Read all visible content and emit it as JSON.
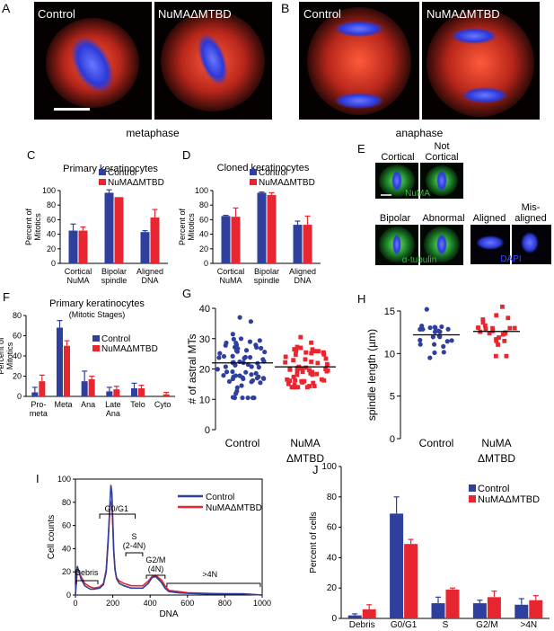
{
  "colors": {
    "control": "#2e3f9e",
    "mutant": "#e8262f",
    "spindle": "#e8321e",
    "dna": "#3a48ff",
    "numa_stain": "#36c13e"
  },
  "panels": {
    "A": {
      "letter": "A",
      "labels": [
        "Control",
        "NuMAΔMTBD"
      ],
      "caption": "metaphase"
    },
    "B": {
      "letter": "B",
      "labels": [
        "Control",
        "NuMAΔMTBD"
      ],
      "caption": "anaphase"
    },
    "E": {
      "letter": "E",
      "labels": [
        "Cortical",
        "Not Cortical",
        "Bipolar",
        "Abnormal",
        "Aligned",
        "Mis-aligned"
      ],
      "stains": [
        "NuMA",
        "α-tubulin",
        "DAPI"
      ]
    },
    "C": {
      "letter": "C"
    },
    "D": {
      "letter": "D"
    },
    "F": {
      "letter": "F"
    },
    "G": {
      "letter": "G"
    },
    "H": {
      "letter": "H"
    },
    "I": {
      "letter": "I"
    },
    "J": {
      "letter": "J"
    }
  },
  "chart_data": [
    {
      "id": "C",
      "type": "bar",
      "title": "Primary keratinocytes",
      "ylabel": "Percent of Mitotics",
      "ylim": [
        0,
        100
      ],
      "yticks": [
        0,
        20,
        40,
        60,
        80,
        100
      ],
      "categories": [
        "Cortical NuMA",
        "Bipolar spindle",
        "Aligned DNA"
      ],
      "categories_lines": [
        [
          "Cortical",
          "NuMA"
        ],
        [
          "Bipolar",
          "spindle"
        ],
        [
          "Aligned",
          "DNA"
        ]
      ],
      "series": [
        {
          "name": "Control",
          "values": [
            45,
            97,
            43
          ],
          "errors": [
            9,
            4,
            2
          ]
        },
        {
          "name": "NuMAΔMTBD",
          "values": [
            45,
            91,
            63
          ],
          "errors": [
            5,
            0,
            11
          ]
        }
      ]
    },
    {
      "id": "D",
      "type": "bar",
      "title": "Cloned keratinocytes",
      "ylabel": "Percent of Mitotics",
      "ylim": [
        0,
        100
      ],
      "yticks": [
        0,
        20,
        40,
        60,
        80,
        100
      ],
      "categories": [
        "Cortical NuMA",
        "Bipolar spindle",
        "Aligned DNA"
      ],
      "categories_lines": [
        [
          "Cortical",
          "NuMA"
        ],
        [
          "Bipolar",
          "spindle"
        ],
        [
          "Aligned",
          "DNA"
        ]
      ],
      "series": [
        {
          "name": "Control",
          "values": [
            65,
            97,
            53
          ],
          "errors": [
            1,
            1,
            5
          ]
        },
        {
          "name": "NuMAΔMTBD",
          "values": [
            64,
            94,
            53
          ],
          "errors": [
            12,
            3,
            12
          ]
        }
      ]
    },
    {
      "id": "F",
      "type": "bar",
      "title": "Primary keratinocytes",
      "subtitle": "(Mitotic Stages)",
      "ylabel": "Percent of Mitotics",
      "ylim": [
        0,
        80
      ],
      "yticks": [
        0,
        20,
        40,
        60,
        80
      ],
      "categories": [
        "Pro-meta",
        "Meta",
        "Ana",
        "Late Ana",
        "Telo",
        "Cyto"
      ],
      "categories_lines": [
        [
          "Pro-",
          "meta"
        ],
        [
          "Meta"
        ],
        [
          "Ana"
        ],
        [
          "Late",
          "Ana"
        ],
        [
          "Telo"
        ],
        [
          "Cyto"
        ]
      ],
      "series": [
        {
          "name": "Control",
          "values": [
            4,
            68,
            15,
            5,
            8,
            0
          ],
          "errors": [
            5,
            7,
            10,
            4,
            5,
            0
          ]
        },
        {
          "name": "NuMAΔMTBD",
          "values": [
            15,
            50,
            17,
            7,
            8,
            2
          ],
          "errors": [
            6,
            5,
            3,
            3,
            3,
            2
          ]
        }
      ]
    },
    {
      "id": "G",
      "type": "scatter",
      "ylabel": "# of astral MTs",
      "ylim": [
        0,
        40
      ],
      "yticks": [
        0,
        10,
        20,
        30,
        40
      ],
      "categories": [
        "Control",
        "NuMA ΔMTBD"
      ],
      "categories_lines": [
        [
          "Control"
        ],
        [
          "NuMA",
          "ΔMTBD"
        ]
      ],
      "series": [
        {
          "name": "Control",
          "mean": 22.0,
          "n": 70,
          "min": 10.5,
          "max": 37.0
        },
        {
          "name": "NuMAΔMTBD",
          "mean": 20.7,
          "n": 60,
          "min": 14.0,
          "max": 30.5
        }
      ]
    },
    {
      "id": "H",
      "type": "scatter",
      "ylabel": "spindle length (µm)",
      "ylim": [
        0,
        15
      ],
      "yticks": [
        0,
        5,
        10,
        15
      ],
      "categories": [
        "Control",
        "NuMA ΔMTBD"
      ],
      "categories_lines": [
        [
          "Control"
        ],
        [
          "NuMA",
          "ΔMTBD"
        ]
      ],
      "series": [
        {
          "name": "Control",
          "mean": 12.2,
          "n": 24,
          "min": 9.5,
          "max": 15.2
        },
        {
          "name": "NuMAΔMTBD",
          "mean": 12.6,
          "n": 24,
          "min": 9.7,
          "max": 15.5
        }
      ]
    },
    {
      "id": "I",
      "type": "line",
      "xlabel": "DNA",
      "ylabel": "Cell counts",
      "xlim": [
        0,
        1000
      ],
      "ylim": [
        0,
        100
      ],
      "xticks": [
        0,
        200,
        400,
        600,
        800,
        1000
      ],
      "yticks": [
        0,
        20,
        40,
        60,
        80,
        100
      ],
      "series": [
        {
          "name": "Control",
          "x": [
            0,
            10,
            30,
            50,
            80,
            100,
            130,
            150,
            165,
            175,
            185,
            190,
            195,
            200,
            205,
            212,
            220,
            235,
            260,
            300,
            330,
            360,
            390,
            410,
            430,
            460,
            480,
            500,
            550,
            600,
            700,
            800,
            900,
            1000
          ],
          "y": [
            0,
            25,
            14,
            8,
            5,
            5,
            6,
            9,
            20,
            45,
            80,
            95,
            88,
            65,
            40,
            22,
            14,
            10,
            8,
            6,
            6,
            6,
            10,
            15,
            16,
            11,
            6,
            3,
            2,
            1.5,
            1,
            1,
            1,
            0
          ]
        },
        {
          "name": "NuMAΔMTBD",
          "x": [
            0,
            10,
            30,
            50,
            80,
            100,
            130,
            150,
            165,
            175,
            185,
            190,
            195,
            200,
            205,
            212,
            220,
            235,
            260,
            300,
            330,
            360,
            390,
            410,
            430,
            460,
            480,
            500,
            550,
            600,
            700,
            800,
            900,
            1000
          ],
          "y": [
            0,
            22,
            16,
            10,
            7,
            6,
            7,
            10,
            22,
            48,
            75,
            80,
            78,
            60,
            38,
            22,
            15,
            12,
            10,
            8,
            8,
            8,
            12,
            16,
            17,
            13,
            8,
            4,
            3,
            2,
            1.5,
            1.2,
            1,
            0
          ]
        }
      ],
      "annotations": [
        "G0/G1",
        "S",
        "(2-4N)",
        "G2/M",
        "(4N)",
        "Debris",
        ">4N"
      ]
    },
    {
      "id": "J",
      "type": "bar",
      "ylabel": "Percent of cells",
      "ylim": [
        0,
        100
      ],
      "yticks": [
        0,
        20,
        40,
        60,
        80,
        100
      ],
      "categories": [
        "Debris",
        "G0/G1",
        "S",
        "G2/M",
        ">4N"
      ],
      "categories_lines": [
        [
          "Debris"
        ],
        [
          "G0/G1"
        ],
        [
          "S"
        ],
        [
          "G2/M"
        ],
        [
          ">4N"
        ]
      ],
      "series": [
        {
          "name": "Control",
          "values": [
            2,
            69,
            10,
            10,
            9
          ],
          "errors": [
            1,
            11,
            4,
            2,
            4
          ]
        },
        {
          "name": "NuMAΔMTBD",
          "values": [
            6,
            49,
            19,
            14,
            12
          ],
          "errors": [
            3,
            3,
            1,
            4,
            3
          ]
        }
      ]
    }
  ]
}
